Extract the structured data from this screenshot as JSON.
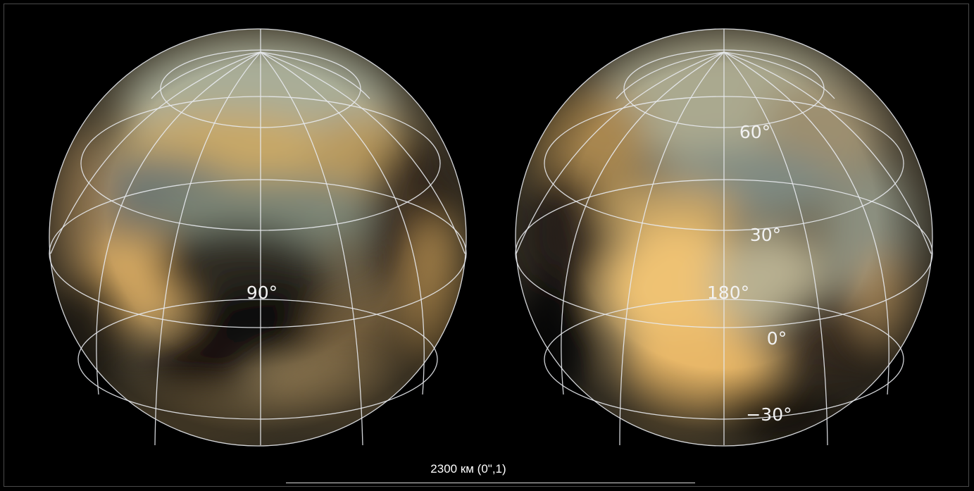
{
  "globes": [
    {
      "name": "left-globe",
      "labels": [
        "90°"
      ]
    },
    {
      "name": "right-globe",
      "labels": [
        "60°",
        "30°",
        "180°",
        "0°",
        "−30°"
      ]
    }
  ],
  "scale": {
    "label": "2300 км (0\",1)"
  },
  "colors": {
    "background": "#000000",
    "grid": "#e8eaee",
    "surface_light": "#e8bd70",
    "surface_dark": "#0d0a06",
    "surface_gray": "#8d9a8f"
  }
}
